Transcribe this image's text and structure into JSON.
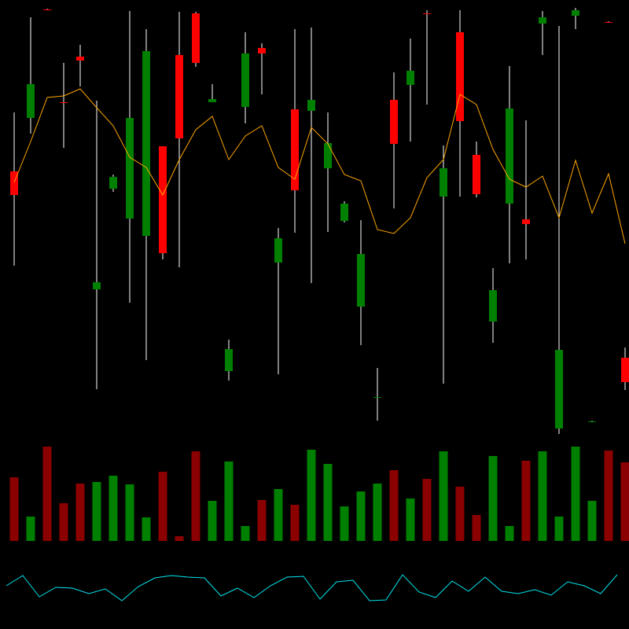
{
  "chart_data": [
    {
      "type": "candlestick",
      "open": [
        342,
        410,
        548,
        430,
        488,
        192,
        320,
        282,
        260,
        374,
        490,
        543,
        430,
        88,
        424,
        499,
        226,
        421,
        419,
        346,
        279,
        170,
        54,
        433,
        452,
        543,
        310,
        519,
        363,
        151,
        301,
        281,
        530,
        15,
        540,
        23,
        532,
        105
      ],
      "close": [
        312,
        453,
        547,
        429,
        483,
        201,
        335,
        410,
        495,
        238,
        384,
        480,
        434,
        116,
        492,
        492,
        257,
        318,
        433,
        378,
        301,
        237,
        55,
        377,
        470,
        542,
        346,
        406,
        313,
        191,
        422,
        275,
        538,
        115,
        547,
        24,
        531,
        74
      ],
      "high": [
        417,
        538,
        549,
        480,
        503,
        432,
        338,
        546,
        523,
        374,
        545,
        545,
        453,
        128,
        519,
        505,
        270,
        523,
        525,
        417,
        304,
        280,
        92,
        468,
        511,
        547,
        375,
        547,
        380,
        219,
        476,
        407,
        546,
        527,
        550,
        25,
        533,
        118
      ],
      "low": [
        222,
        390,
        547,
        372,
        450,
        65,
        316,
        175,
        102,
        230,
        220,
        475,
        430,
        76,
        403,
        440,
        84,
        264,
        200,
        265,
        277,
        121,
        25,
        295,
        380,
        427,
        72,
        310,
        309,
        124,
        225,
        230,
        490,
        8,
        523,
        23,
        531,
        64
      ],
      "up_color": "#008000",
      "down_color": "#ff0000",
      "series": [
        {
          "color": "#ffa500",
          "values": [
            328,
            380,
            436,
            438,
            447,
            423,
            400,
            360,
            347,
            312,
            357,
            395,
            412,
            357,
            387,
            400,
            347,
            332,
            398,
            377,
            338,
            330,
            268,
            263,
            283,
            334,
            357,
            440,
            427,
            370,
            332,
            322,
            336,
            283,
            356,
            289,
            339,
            250
          ]
        }
      ],
      "ylim": [
        0,
        560
      ]
    },
    {
      "type": "bar",
      "values": [
        81,
        31,
        120,
        48,
        73,
        75,
        83,
        72,
        30,
        88,
        6,
        114,
        51,
        101,
        19,
        52,
        66,
        46,
        116,
        98,
        44,
        63,
        73,
        90,
        54,
        79,
        114,
        69,
        33,
        108,
        19,
        102,
        114,
        31,
        120,
        51,
        115,
        100
      ],
      "up_color": "#008000",
      "down_color": "#8b0000",
      "ylim": [
        0,
        130
      ]
    },
    {
      "type": "line",
      "series": [
        {
          "color": "#00e5ee",
          "values": [
            55,
            68,
            41,
            53,
            52,
            45,
            51,
            36,
            54,
            65,
            68,
            66,
            65,
            42,
            52,
            40,
            55,
            66,
            67,
            38,
            60,
            62,
            36,
            37,
            69,
            47,
            40,
            61,
            48,
            66,
            48,
            45,
            50,
            43,
            60,
            55,
            45,
            69
          ]
        }
      ],
      "ylim": [
        0,
        100
      ]
    }
  ]
}
